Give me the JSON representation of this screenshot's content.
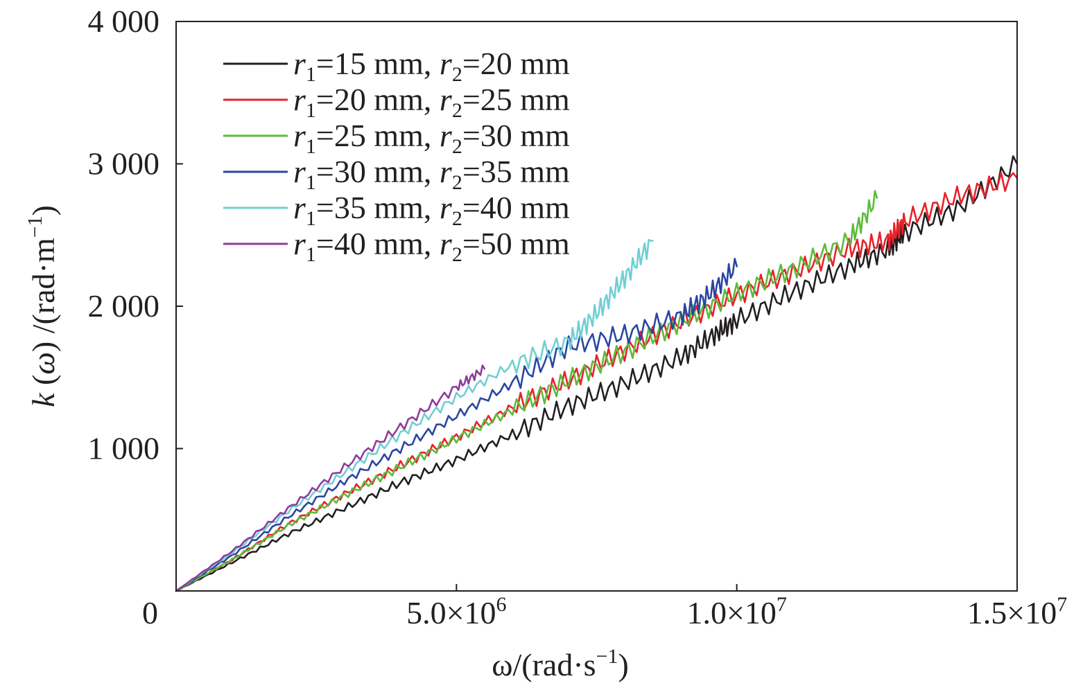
{
  "chart_data": {
    "type": "line",
    "xlabel": {
      "main": "ω/(rad·s",
      "sup": "−1",
      "close": ")"
    },
    "ylabel": {
      "var": "k",
      "pre": " (",
      "arg": "ω",
      "mid": ") /(rad·m",
      "sup": "−1",
      "close": ")"
    },
    "xlim": [
      0,
      15000000
    ],
    "ylim": [
      0,
      4000
    ],
    "x_ticks": [
      {
        "value": 5000000,
        "mant": "5.0×10",
        "exp": "6"
      },
      {
        "value": 10000000,
        "mant": "1.0×10",
        "exp": "7"
      },
      {
        "value": 15000000,
        "mant": "1.5×10",
        "exp": "7"
      }
    ],
    "y_ticks": [
      {
        "value": 1000,
        "label": "1 000"
      },
      {
        "value": 2000,
        "label": "2 000"
      },
      {
        "value": 3000,
        "label": "3 000"
      },
      {
        "value": 4000,
        "label": "4 000"
      }
    ],
    "origin_label": "0",
    "legend_position": "upper-left",
    "series": [
      {
        "color": "#231f20",
        "r1": "15",
        "r2": "20",
        "legend": {
          "r": "r",
          "sub1": "1",
          "text1": "=15 mm, ",
          "sub2": "2",
          "text2": "=20 mm"
        },
        "x": [
          0,
          1000000,
          2000000,
          3000000,
          4000000,
          5000000,
          6000000,
          7000000,
          8000000,
          9000000,
          9600000,
          10000000,
          11000000,
          12000000,
          12700000,
          13000000,
          14000000,
          15000000
        ],
        "y": [
          0,
          200,
          400,
          580,
          760,
          920,
          1100,
          1300,
          1460,
          1640,
          1800,
          1900,
          2100,
          2280,
          2400,
          2520,
          2700,
          3000
        ]
      },
      {
        "color": "#e8212a",
        "r1": "20",
        "r2": "25",
        "legend": {
          "r": "r",
          "sub1": "1",
          "text1": "=20 mm, ",
          "sub2": "2",
          "text2": "=25 mm"
        },
        "x": [
          0,
          1000000,
          2000000,
          3000000,
          4000000,
          5000000,
          6000000,
          7000000,
          8000000,
          9000000,
          10000000,
          11000000,
          12000000,
          12700000,
          13000000,
          14000000,
          15000000
        ],
        "y": [
          0,
          220,
          470,
          680,
          880,
          1080,
          1290,
          1480,
          1690,
          1890,
          2080,
          2240,
          2400,
          2460,
          2600,
          2780,
          2900
        ]
      },
      {
        "color": "#5bbb3a",
        "r1": "25",
        "r2": "30",
        "legend": {
          "r": "r",
          "sub1": "1",
          "text1": "=25 mm, ",
          "sub2": "2",
          "text2": "=30 mm"
        },
        "x": [
          0,
          1000000,
          2000000,
          3000000,
          4000000,
          5000000,
          6000000,
          7000000,
          8000000,
          9000000,
          10000000,
          11000000,
          12000000,
          12500000
        ],
        "y": [
          0,
          220,
          460,
          670,
          870,
          1070,
          1270,
          1480,
          1680,
          1890,
          2090,
          2260,
          2460,
          2760
        ]
      },
      {
        "color": "#2a46a0",
        "r1": "30",
        "r2": "35",
        "legend": {
          "r": "r",
          "sub1": "1",
          "text1": "=30 mm, ",
          "sub2": "2",
          "text2": "=35 mm"
        },
        "x": [
          0,
          1000000,
          2000000,
          3000000,
          4000000,
          5000000,
          6000000,
          7000000,
          8000000,
          9000000,
          9500000,
          10000000
        ],
        "y": [
          0,
          250,
          520,
          770,
          1000,
          1230,
          1460,
          1720,
          1800,
          1930,
          2080,
          2280
        ]
      },
      {
        "color": "#6fcfd4",
        "r1": "35",
        "r2": "40",
        "legend": {
          "r": "r",
          "sub1": "1",
          "text1": "=35 mm, ",
          "sub2": "2",
          "text2": "=40 mm"
        },
        "x": [
          0,
          1000000,
          2000000,
          3000000,
          4000000,
          5000000,
          6000000,
          7000000,
          7500000,
          8000000,
          8500000
        ],
        "y": [
          0,
          270,
          560,
          830,
          1100,
          1360,
          1590,
          1750,
          1950,
          2200,
          2460
        ]
      },
      {
        "color": "#8e3c9a",
        "r1": "40",
        "r2": "50",
        "legend": {
          "r": "r",
          "sub1": "1",
          "text1": "=40 mm, ",
          "sub2": "2",
          "text2": "=50 mm"
        },
        "x": [
          0,
          1000000,
          2000000,
          3000000,
          4000000,
          5000000,
          5500000
        ],
        "y": [
          0,
          280,
          580,
          870,
          1150,
          1430,
          1560
        ]
      }
    ]
  }
}
